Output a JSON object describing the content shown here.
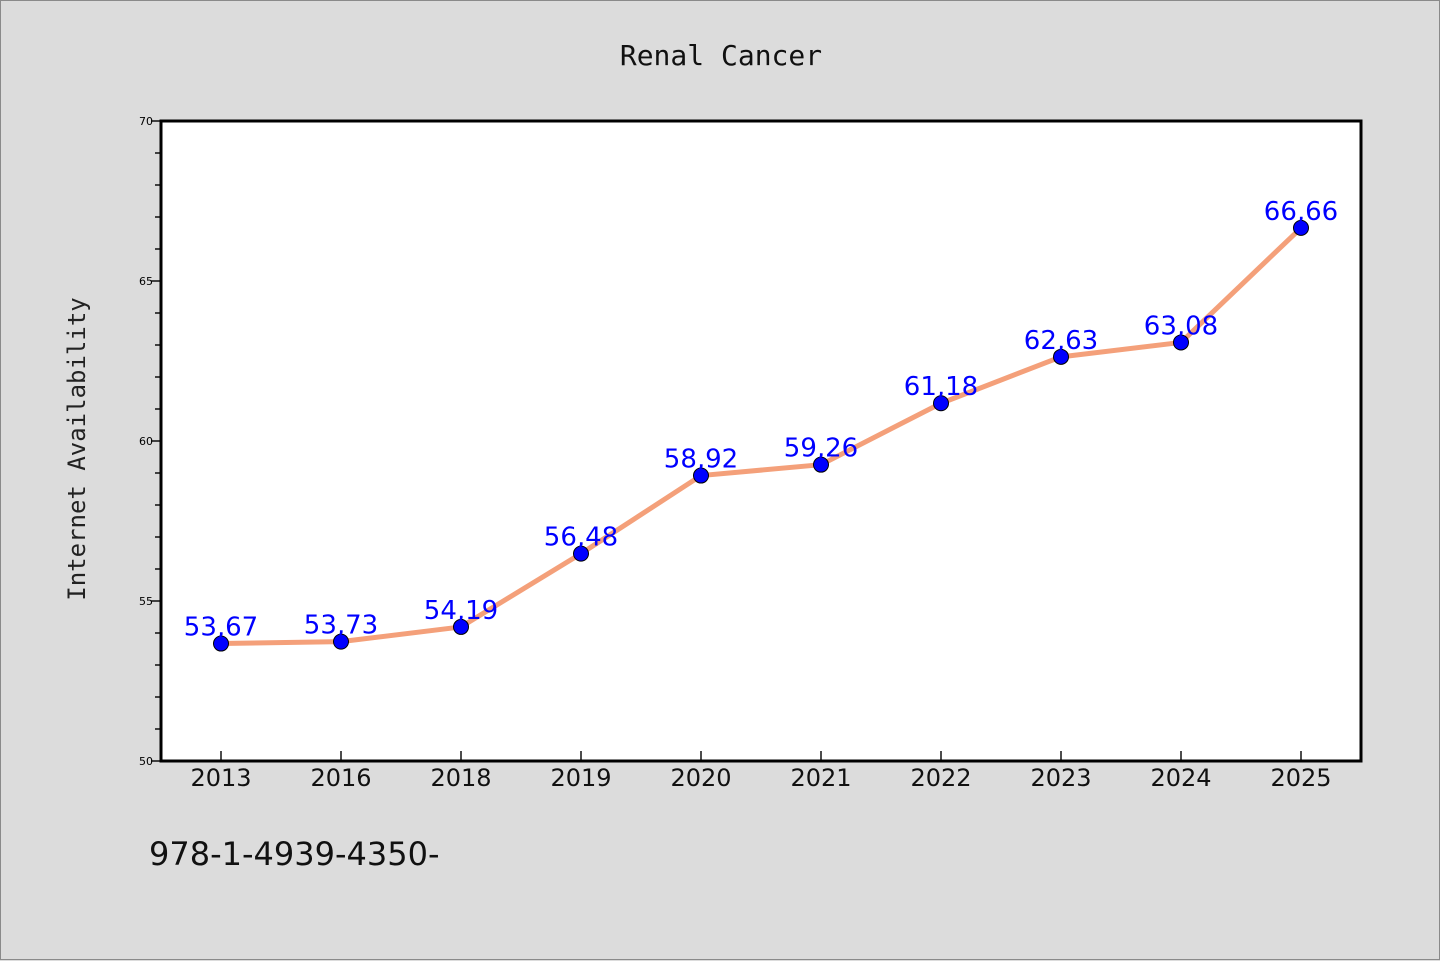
{
  "chart_data": {
    "type": "line",
    "title": "Renal Cancer",
    "xlabel": "",
    "ylabel": "Internet Availability",
    "categories": [
      "2013",
      "2016",
      "2018",
      "2019",
      "2020",
      "2021",
      "2022",
      "2023",
      "2024",
      "2025"
    ],
    "series": [
      {
        "values": [
          53.67,
          53.73,
          54.19,
          56.48,
          58.92,
          59.26,
          61.18,
          62.63,
          63.08,
          66.66
        ],
        "color": "#f4a07a",
        "marker_color": "#0000ff"
      }
    ],
    "ylim": [
      50,
      70
    ],
    "y_major_ticks": [
      50,
      55,
      60,
      65,
      70
    ],
    "y_minor_step": 1,
    "grid": false,
    "legend": "none",
    "data_label_color": "#0000ff",
    "data_label_format": "comma-decimal"
  },
  "footer": {
    "text": "978-1-4939-4350-"
  }
}
